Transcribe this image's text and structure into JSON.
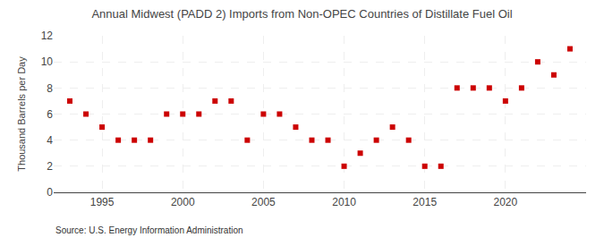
{
  "chart_data": {
    "type": "scatter",
    "title": "Annual Midwest (PADD 2) Imports from Non-OPEC Countries of Distillate Fuel Oil",
    "ylabel": "Thousand Barrels per Day",
    "annotations": [
      "Source: U.S. Energy Information Administration"
    ],
    "x": [
      1993,
      1994,
      1995,
      1996,
      1997,
      1998,
      1999,
      2000,
      2001,
      2002,
      2003,
      2004,
      2005,
      2006,
      2007,
      2008,
      2009,
      2010,
      2011,
      2012,
      2013,
      2014,
      2015,
      2016,
      2017,
      2018,
      2019,
      2020,
      2021,
      2022,
      2023,
      2024
    ],
    "values": [
      7,
      6,
      5,
      4,
      4,
      4,
      6,
      6,
      6,
      7,
      7,
      4,
      6,
      6,
      5,
      4,
      4,
      2,
      3,
      4,
      5,
      4,
      2,
      2,
      8,
      8,
      8,
      7,
      8,
      10,
      9,
      11
    ],
    "color": "#cc0000",
    "marker": "square",
    "xlim": [
      1992,
      2025
    ],
    "ylim": [
      0,
      12
    ],
    "xticks": [
      1995,
      2000,
      2005,
      2010,
      2015,
      2020
    ],
    "yticks": [
      0,
      2,
      4,
      6,
      8,
      10,
      12
    ],
    "grid": true
  }
}
